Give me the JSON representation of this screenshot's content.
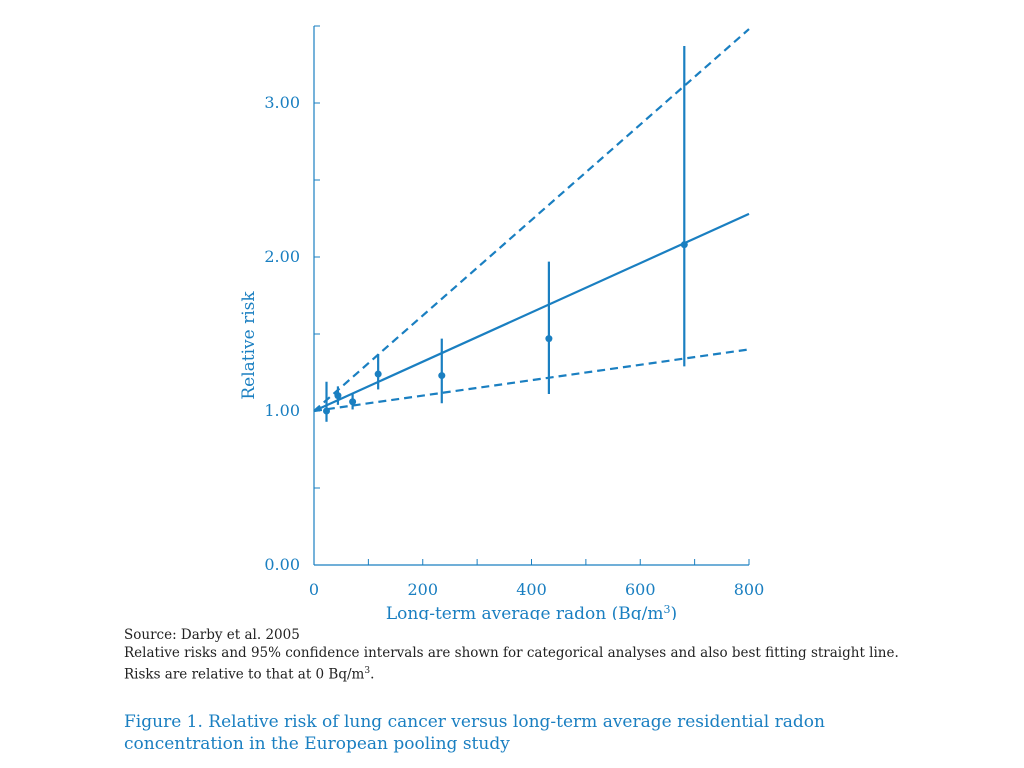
{
  "chart_data": {
    "type": "scatter",
    "xlabel": "Long-term average radon (Bq/m",
    "xlabel_sup": "3",
    "xlabel_end": ")",
    "ylabel": "Relative risk",
    "xlim": [
      0,
      800
    ],
    "ylim": [
      0,
      3.5
    ],
    "x_ticks": [
      0,
      200,
      400,
      600,
      800
    ],
    "x_tick_labels": [
      "0",
      "200",
      "400",
      "600",
      "800"
    ],
    "y_ticks": [
      0,
      1,
      2,
      3
    ],
    "y_tick_labels": [
      "0.00",
      "1.00",
      "2.00",
      "3.00"
    ],
    "points": [
      {
        "x": 23,
        "y": 1.0,
        "ci_low": 0.93,
        "ci_high": 1.19
      },
      {
        "x": 44,
        "y": 1.1,
        "ci_low": 1.04,
        "ci_high": 1.16
      },
      {
        "x": 71,
        "y": 1.06,
        "ci_low": 1.01,
        "ci_high": 1.11
      },
      {
        "x": 118,
        "y": 1.24,
        "ci_low": 1.14,
        "ci_high": 1.37
      },
      {
        "x": 235,
        "y": 1.23,
        "ci_low": 1.05,
        "ci_high": 1.47
      },
      {
        "x": 432,
        "y": 1.47,
        "ci_low": 1.11,
        "ci_high": 1.97
      },
      {
        "x": 681,
        "y": 2.08,
        "ci_low": 1.29,
        "ci_high": 3.37
      }
    ],
    "fit_line": {
      "x": [
        0,
        800
      ],
      "y": [
        1.0,
        2.28
      ]
    },
    "upper_ci_line": {
      "x": [
        0,
        800
      ],
      "y": [
        1.0,
        3.48
      ]
    },
    "lower_ci_line": {
      "x": [
        0,
        800
      ],
      "y": [
        1.0,
        1.4
      ]
    },
    "color": "#1a7fc1",
    "grid": false
  },
  "notes": {
    "source": "Source: Darby et al. 2005",
    "line2": "Relative risks and 95% confidence intervals are shown for categorical analyses and also best fitting straight line.",
    "line3_pre": "Risks are relative to that at 0 Bq/m",
    "line3_sup": "3",
    "line3_post": "."
  },
  "caption": {
    "line1": "Figure 1. Relative risk of lung cancer versus long-term average residential radon",
    "line2": "concentration in the European pooling study"
  }
}
